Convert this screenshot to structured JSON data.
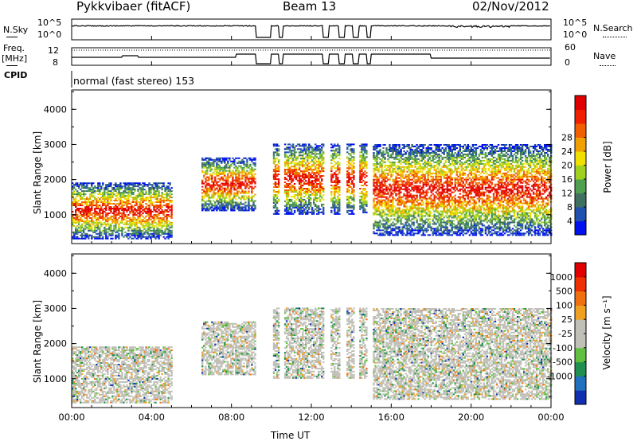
{
  "header": {
    "station": "Pykkvibaer (fitACF)",
    "beam": "Beam 13",
    "date": "02/Nov/2012"
  },
  "sky_panel": {
    "left_label": "N.Sky",
    "left_ticks": [
      "10^5",
      "10^0"
    ],
    "right_ticks": [
      "10^5",
      "10^0"
    ],
    "right_label": "N.Search",
    "right_style": "dotted"
  },
  "freq_panel": {
    "left_label_1": "Freq.",
    "left_label_2": "[MHz]",
    "left_ticks": [
      "12",
      "8"
    ],
    "right_ticks": [
      "60",
      "0"
    ],
    "right_label": "Nave",
    "right_style": "dotted"
  },
  "cpid": {
    "label": "CPID",
    "text": "normal (fast stereo) 153"
  },
  "x_axis": {
    "label": "Time UT",
    "ticks": [
      "00:00",
      "04:00",
      "08:00",
      "12:00",
      "16:00",
      "20:00",
      "00:00"
    ],
    "range_hours": [
      0,
      24
    ]
  },
  "chart_data": [
    {
      "type": "heatmap",
      "panel": "power",
      "ylabel": "Slant Range [km]",
      "ylim": [
        180,
        4550
      ],
      "yticks": [
        "1000",
        "2000",
        "3000",
        "4000"
      ],
      "colorbar_label": "Power [dB]",
      "colorbar_ticks": [
        "4",
        "8",
        "12",
        "16",
        "20",
        "24",
        "28"
      ],
      "colors": [
        "#0010f0",
        "#2050b0",
        "#407060",
        "#50a050",
        "#a0d020",
        "#f0e000",
        "#f0a000",
        "#f06000",
        "#f02000",
        "#e00000"
      ],
      "data_gaps_hours": [
        [
          9.2,
          10.0
        ],
        [
          10.4,
          10.6
        ],
        [
          12.6,
          12.9
        ],
        [
          13.4,
          13.7
        ],
        [
          14.1,
          14.4
        ],
        [
          14.8,
          15.0
        ]
      ],
      "echo_regions": [
        {
          "t": [
            0.0,
            5.0
          ],
          "range": [
            300,
            1900
          ],
          "power": 20
        },
        {
          "t": [
            6.5,
            9.2
          ],
          "range": [
            1100,
            2600
          ],
          "power": 18
        },
        {
          "t": [
            10.0,
            14.8
          ],
          "range": [
            1000,
            3000
          ],
          "power": 22
        },
        {
          "t": [
            15.0,
            24.0
          ],
          "range": [
            400,
            3000
          ],
          "power": 16
        }
      ]
    },
    {
      "type": "heatmap",
      "panel": "velocity",
      "ylabel": "Slant Range [km]",
      "ylim": [
        180,
        4550
      ],
      "yticks": [
        "1000",
        "2000",
        "3000",
        "4000"
      ],
      "colorbar_label": "Velocity [m s⁻¹]",
      "colorbar_ticks": [
        "1000",
        "500",
        "100",
        "25",
        "-25",
        "-100",
        "-500",
        "-1000"
      ],
      "colors": [
        "#1030b0",
        "#2070c0",
        "#209050",
        "#60c040",
        "#c0c0b8",
        "#c0c0b8",
        "#f0a020",
        "#f07010",
        "#f03000",
        "#e00000"
      ],
      "echo_regions": [
        {
          "t": [
            0.0,
            5.0
          ],
          "range": [
            300,
            1900
          ],
          "velocity": 0
        },
        {
          "t": [
            6.5,
            9.2
          ],
          "range": [
            1100,
            2600
          ],
          "velocity": 0
        },
        {
          "t": [
            10.0,
            14.8
          ],
          "range": [
            1000,
            3000
          ],
          "velocity": 0
        },
        {
          "t": [
            15.0,
            24.0
          ],
          "range": [
            400,
            3000
          ],
          "velocity": -25
        }
      ]
    }
  ]
}
